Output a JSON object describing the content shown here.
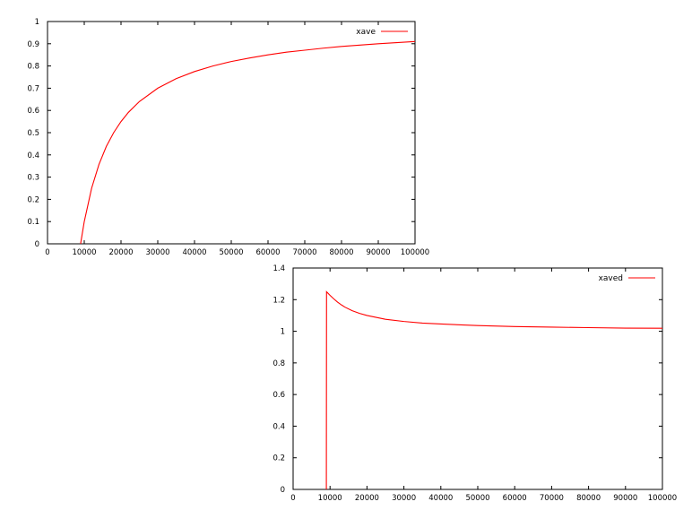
{
  "chart_data": [
    {
      "type": "line",
      "title": "",
      "xlabel": "",
      "ylabel": "",
      "xlim": [
        0,
        100000
      ],
      "ylim": [
        0,
        1
      ],
      "x_ticks": [
        "0",
        "10000",
        "20000",
        "30000",
        "40000",
        "50000",
        "60000",
        "70000",
        "80000",
        "90000",
        "100000"
      ],
      "y_ticks": [
        "0",
        "0.1",
        "0.2",
        "0.3",
        "0.4",
        "0.5",
        "0.6",
        "0.7",
        "0.8",
        "0.9",
        "1"
      ],
      "grid": false,
      "legend_position": "top-right",
      "series": [
        {
          "name": "xave",
          "color": "#ff0000",
          "x": [
            9000,
            10000,
            12000,
            14000,
            16000,
            18000,
            20000,
            22000,
            25000,
            30000,
            35000,
            40000,
            45000,
            50000,
            55000,
            60000,
            65000,
            70000,
            75000,
            80000,
            85000,
            90000,
            95000,
            100000
          ],
          "y": [
            0,
            0.1,
            0.25,
            0.357,
            0.438,
            0.5,
            0.55,
            0.591,
            0.64,
            0.7,
            0.743,
            0.775,
            0.8,
            0.82,
            0.836,
            0.85,
            0.862,
            0.871,
            0.88,
            0.888,
            0.894,
            0.9,
            0.905,
            0.91
          ]
        }
      ]
    },
    {
      "type": "line",
      "title": "",
      "xlabel": "",
      "ylabel": "",
      "xlim": [
        0,
        100000
      ],
      "ylim": [
        0,
        1.4
      ],
      "x_ticks": [
        "0",
        "10000",
        "20000",
        "30000",
        "40000",
        "50000",
        "60000",
        "70000",
        "80000",
        "90000",
        "100000"
      ],
      "y_ticks": [
        "0",
        "0.2",
        "0.4",
        "0.6",
        "0.8",
        "1",
        "1.2",
        "1.4"
      ],
      "grid": false,
      "legend_position": "top-right",
      "series": [
        {
          "name": "xaved",
          "color": "#ff0000",
          "x": [
            9000,
            9050,
            10000,
            11000,
            12000,
            13000,
            14000,
            16000,
            18000,
            20000,
            25000,
            30000,
            35000,
            40000,
            50000,
            60000,
            70000,
            80000,
            90000,
            100000
          ],
          "y": [
            0,
            1.25,
            1.227,
            1.205,
            1.185,
            1.168,
            1.153,
            1.13,
            1.113,
            1.1,
            1.076,
            1.062,
            1.052,
            1.046,
            1.036,
            1.03,
            1.026,
            1.023,
            1.02,
            1.019
          ]
        }
      ]
    }
  ]
}
